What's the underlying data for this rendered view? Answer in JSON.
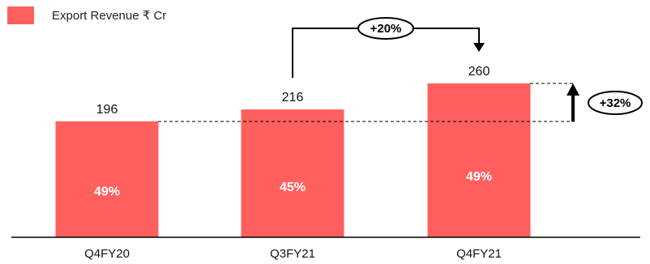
{
  "chart_data": {
    "type": "bar",
    "categories": [
      "Q4FY20",
      "Q3FY21",
      "Q4FY21"
    ],
    "series": [
      {
        "name": "Export Revenue ₹ Cr",
        "values": [
          196,
          216,
          260
        ]
      }
    ],
    "inner_labels": [
      "49%",
      "45%",
      "49%"
    ],
    "ylim": [
      0,
      260
    ],
    "grid": false,
    "legend": "top-left",
    "annotations": [
      {
        "from": "Q3FY21",
        "to": "Q4FY21",
        "label": "+20%"
      },
      {
        "from": "Q4FY20",
        "to": "Q4FY21",
        "label": "+32%"
      }
    ]
  },
  "colors": {
    "bar": "#FF605E",
    "axis": "#000000",
    "text": "#111111"
  }
}
